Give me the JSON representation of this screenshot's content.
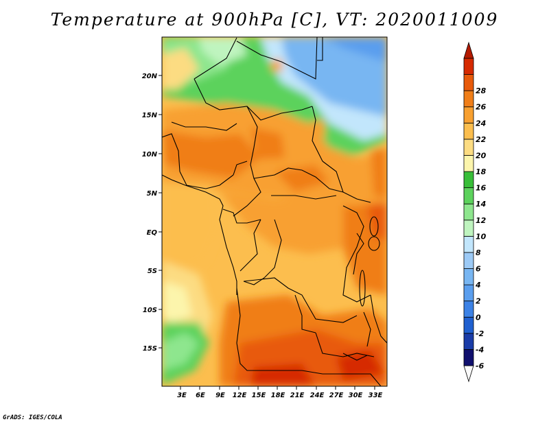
{
  "title": "Temperature at 900hPa [C], VT: 2020011009",
  "credit": "GrADS: IGES/COLA",
  "map": {
    "lat_labels": [
      "20N",
      "15N",
      "10N",
      "5N",
      "EQ",
      "5S",
      "10S",
      "15S"
    ],
    "lon_labels": [
      "3E",
      "6E",
      "9E",
      "12E",
      "15E",
      "18E",
      "21E",
      "24E",
      "27E",
      "30E",
      "33E"
    ]
  },
  "colorbar": {
    "levels": [
      "-6",
      "-4",
      "-2",
      "0",
      "2",
      "4",
      "6",
      "8",
      "10",
      "12",
      "14",
      "16",
      "18",
      "20",
      "22",
      "24",
      "26",
      "28"
    ],
    "colors": [
      "#fafafa",
      "#10106e",
      "#1a3ca8",
      "#2060d0",
      "#3c82e6",
      "#5a9eee",
      "#78b6f2",
      "#9ccaf6",
      "#c2e6fc",
      "#bff4bf",
      "#8ee68e",
      "#5cd25c",
      "#38be38",
      "#fcf5ac",
      "#fcdc82",
      "#fcbe4e",
      "#f8a030",
      "#f07e18",
      "#e85a0a",
      "#d62a00",
      "#b41a00"
    ]
  }
}
